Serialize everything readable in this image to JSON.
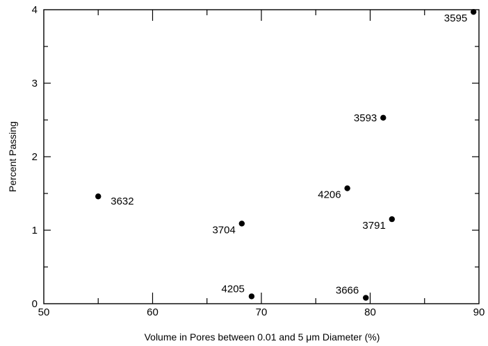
{
  "chart_data": {
    "type": "scatter",
    "title": "",
    "xlabel": "Volume in Pores between 0.01 and 5 μm Diameter (%)",
    "ylabel": "Percent Passing",
    "xlim": [
      50,
      90
    ],
    "ylim": [
      0,
      4
    ],
    "x_ticks": [
      50,
      60,
      70,
      80,
      90
    ],
    "y_ticks": [
      0,
      1,
      2,
      3,
      4
    ],
    "grid": false,
    "legend": "none",
    "points": [
      {
        "label": "3595",
        "x": 89.5,
        "y": 3.97,
        "label_pos": "left-below"
      },
      {
        "label": "3593",
        "x": 81.2,
        "y": 2.53,
        "label_pos": "left"
      },
      {
        "label": "4206",
        "x": 77.9,
        "y": 1.57,
        "label_pos": "left-below"
      },
      {
        "label": "3632",
        "x": 55.0,
        "y": 1.46,
        "label_pos": "right-below"
      },
      {
        "label": "3791",
        "x": 82.0,
        "y": 1.15,
        "label_pos": "left-below"
      },
      {
        "label": "3704",
        "x": 68.2,
        "y": 1.09,
        "label_pos": "left-below"
      },
      {
        "label": "4205",
        "x": 69.1,
        "y": 0.1,
        "label_pos": "left-above"
      },
      {
        "label": "3666",
        "x": 79.6,
        "y": 0.08,
        "label_pos": "left-above"
      }
    ]
  }
}
